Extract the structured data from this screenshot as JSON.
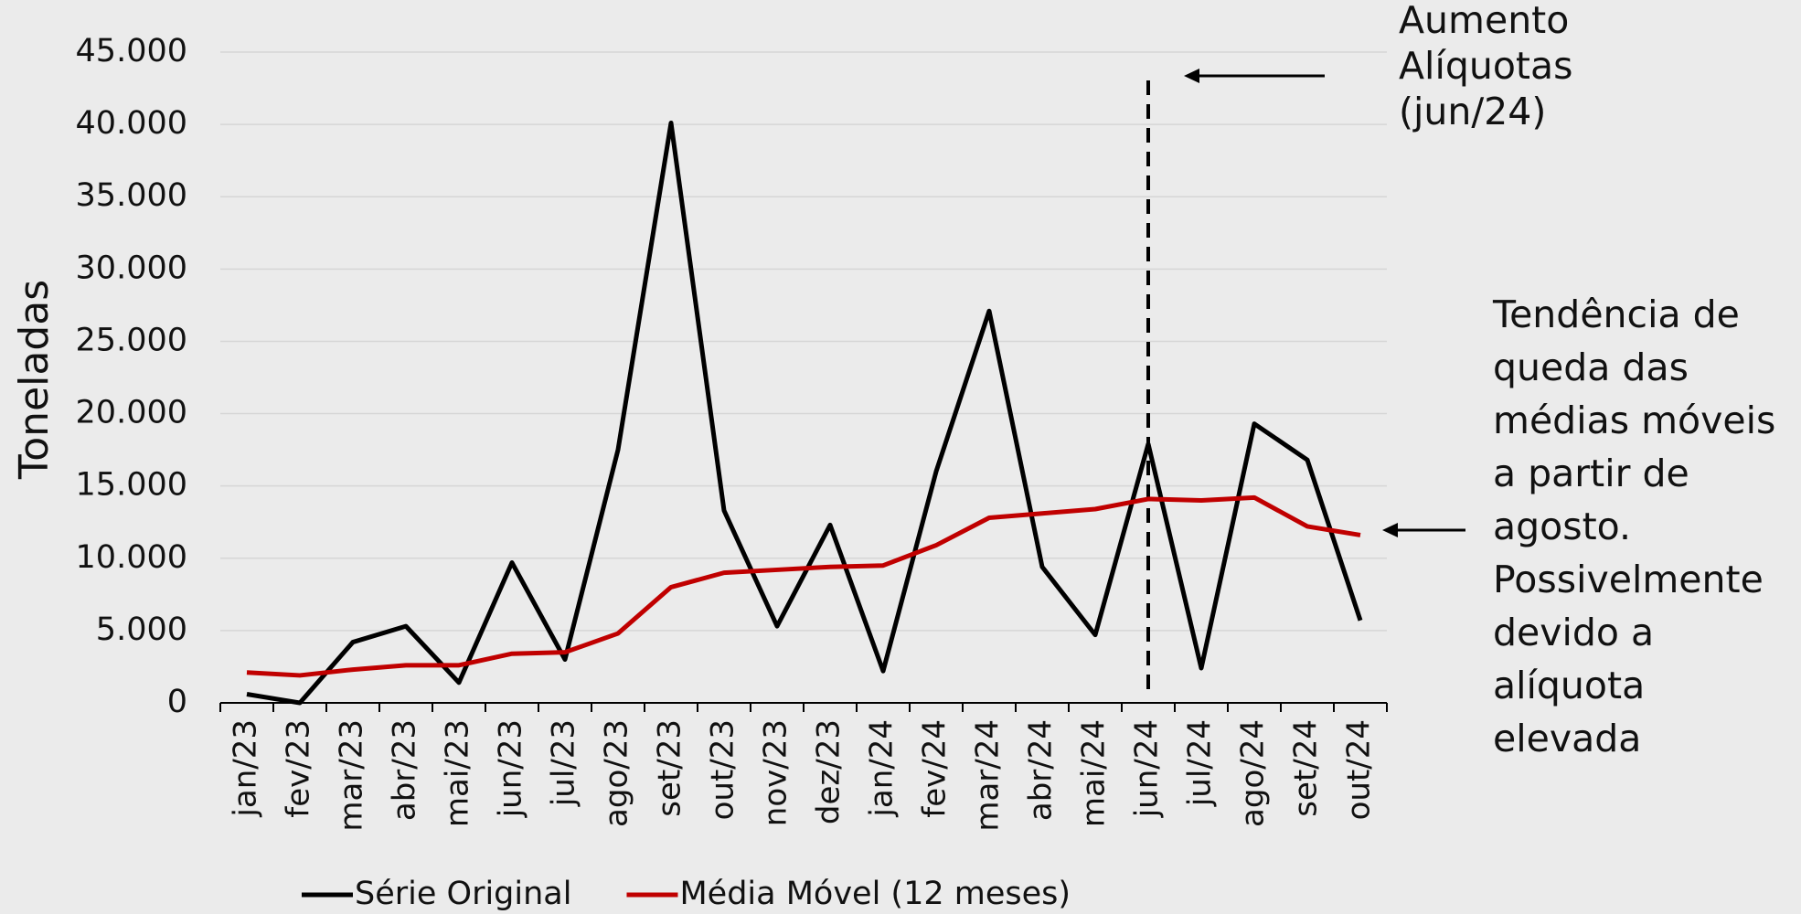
{
  "chart_data": {
    "type": "line",
    "y_label": "Toneladas",
    "categories": [
      "jan/23",
      "fev/23",
      "mar/23",
      "abr/23",
      "mai/23",
      "jun/23",
      "jul/23",
      "ago/23",
      "set/23",
      "out/23",
      "nov/23",
      "dez/23",
      "jan/24",
      "fev/24",
      "mar/24",
      "abr/24",
      "mai/24",
      "jun/24",
      "jul/24",
      "ago/24",
      "set/24",
      "out/24"
    ],
    "series": [
      {
        "name": "Série Original",
        "color": "#000000",
        "values": [
          600,
          0,
          4200,
          5300,
          1400,
          9700,
          3000,
          17500,
          40100,
          13300,
          5300,
          12300,
          2200,
          16000,
          27100,
          9400,
          4700,
          17900,
          2400,
          19300,
          16800,
          5700
        ]
      },
      {
        "name": "Média Móvel (12 meses)",
        "color": "#c00000",
        "values": [
          2100,
          1900,
          2300,
          2600,
          2600,
          3400,
          3500,
          4800,
          8000,
          9000,
          9200,
          9400,
          9500,
          10900,
          12800,
          13100,
          13400,
          14100,
          14000,
          14200,
          12200,
          11600
        ]
      }
    ],
    "ylim": [
      0,
      45000
    ],
    "yticks": [
      0,
      {
        "value": 5000,
        "label": "5.000"
      },
      {
        "value": 10000,
        "label": "10.000"
      },
      {
        "value": 15000,
        "label": "15.000"
      },
      {
        "value": 20000,
        "label": "20.000"
      },
      {
        "value": 25000,
        "label": "25.000"
      },
      {
        "value": 30000,
        "label": "30.000"
      },
      {
        "value": 35000,
        "label": "35.000"
      },
      {
        "value": 40000,
        "label": "40.000"
      },
      {
        "value": 45000,
        "label": "45.000"
      }
    ],
    "grid": true,
    "legend": "bottom",
    "annotations": [
      {
        "lines": [
          "Aumento",
          "Alíquotas",
          "(jun/24)"
        ]
      },
      {
        "lines": [
          "Tendência de",
          "queda das",
          "médias móveis",
          "a partir de",
          "agosto.",
          "Possivelmente",
          "devido a",
          "alíquota",
          "elevada"
        ]
      }
    ]
  }
}
